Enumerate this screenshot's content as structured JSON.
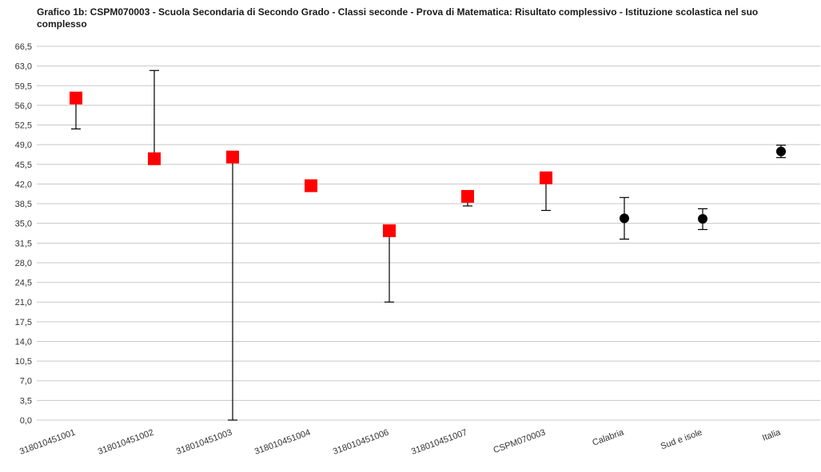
{
  "chart_data": {
    "type": "scatter",
    "title": "Grafico 1b: CSPM070003 - Scuola Secondaria di Secondo Grado - Classi seconde - Prova di Matematica: Risultato complessivo - Istituzione scolastica nel suo complesso",
    "xlabel": "",
    "ylabel": "",
    "ylim": [
      0,
      66.5
    ],
    "y_ticks": [
      "0,0",
      "3,5",
      "7,0",
      "10,5",
      "14,0",
      "17,5",
      "21,0",
      "24,5",
      "28,0",
      "31,5",
      "35,0",
      "38,5",
      "42,0",
      "45,5",
      "49,0",
      "52,5",
      "56,0",
      "59,5",
      "63,0",
      "66,5"
    ],
    "grid": true,
    "legend": "none",
    "categories": [
      "318010451001",
      "318010451002",
      "318010451003",
      "318010451004",
      "318010451006",
      "318010451007",
      "CSPM070003",
      "Calabria",
      "Sud e isole",
      "Italia"
    ],
    "points": [
      {
        "category": "318010451001",
        "value": 57.3,
        "err_low": 51.8,
        "err_high": 57.3,
        "marker": "square"
      },
      {
        "category": "318010451002",
        "value": 46.5,
        "err_low": 46.5,
        "err_high": 62.2,
        "marker": "square"
      },
      {
        "category": "318010451003",
        "value": 46.8,
        "err_low": 0.0,
        "err_high": 46.8,
        "marker": "square"
      },
      {
        "category": "318010451004",
        "value": 41.7,
        "err_low": 41.7,
        "err_high": 41.7,
        "marker": "square"
      },
      {
        "category": "318010451006",
        "value": 33.7,
        "err_low": 21.0,
        "err_high": 33.7,
        "marker": "square"
      },
      {
        "category": "318010451007",
        "value": 39.8,
        "err_low": 38.1,
        "err_high": 39.8,
        "marker": "square"
      },
      {
        "category": "CSPM070003",
        "value": 43.1,
        "err_low": 37.3,
        "err_high": 43.1,
        "marker": "square"
      },
      {
        "category": "Calabria",
        "value": 35.9,
        "err_low": 32.2,
        "err_high": 39.6,
        "marker": "circle"
      },
      {
        "category": "Sud e isole",
        "value": 35.8,
        "err_low": 33.9,
        "err_high": 37.6,
        "marker": "circle"
      },
      {
        "category": "Italia",
        "value": 47.8,
        "err_low": 46.7,
        "err_high": 48.9,
        "marker": "circle"
      }
    ]
  },
  "colors": {
    "square_marker": "#ff0000",
    "circle_marker": "#000000",
    "gridline": "#c8c8c8",
    "error_bar": "#000000"
  }
}
